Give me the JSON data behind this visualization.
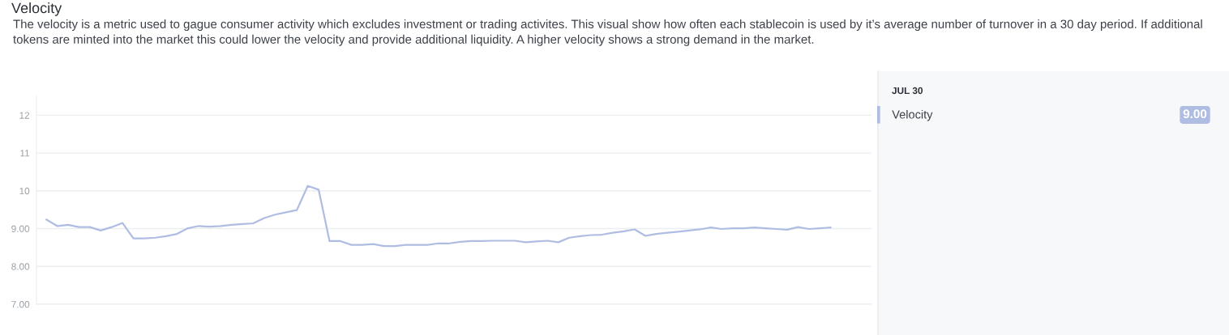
{
  "chart_data": {
    "type": "line",
    "title": "Velocity",
    "subtitle": "The velocity is a metric used to gague consumer activity which excludes investment or trading activites. This visual show how often each stablecoin is used by it’s average number of turnover in a 30 day period. If additional tokens are minted into the market this could lower the velocity and provide additional liquidity. A higher velocity shows a strong demand in the market.",
    "categories": [
      null,
      null,
      null,
      null,
      null,
      null,
      null,
      null,
      null,
      null,
      null,
      null,
      null,
      null,
      null,
      null,
      null,
      null,
      null,
      null,
      null,
      null,
      null,
      null,
      null,
      null,
      null,
      null,
      null,
      null,
      null,
      null,
      null,
      null,
      null,
      null,
      null,
      null,
      null,
      null,
      null,
      null,
      null,
      null,
      null,
      null,
      null,
      null,
      null,
      null,
      null,
      null,
      null,
      null,
      null,
      null,
      null,
      null,
      null,
      null,
      null,
      null,
      null,
      null,
      null,
      null,
      null,
      null,
      null,
      null,
      null,
      null,
      null
    ],
    "series": [
      {
        "name": "Velocity",
        "color": "#b0bde3",
        "values": [
          9.24,
          9.07,
          9.1,
          9.04,
          9.04,
          8.95,
          9.04,
          9.15,
          8.74,
          8.74,
          8.76,
          8.8,
          8.86,
          9.01,
          9.07,
          9.05,
          9.07,
          9.1,
          9.12,
          9.14,
          9.28,
          9.37,
          9.43,
          9.49,
          10.13,
          10.03,
          8.67,
          8.67,
          8.57,
          8.57,
          8.59,
          8.54,
          8.54,
          8.57,
          8.57,
          8.57,
          8.61,
          8.61,
          8.65,
          8.67,
          8.67,
          8.68,
          8.68,
          8.68,
          8.64,
          8.66,
          8.68,
          8.64,
          8.76,
          8.8,
          8.83,
          8.84,
          8.89,
          8.93,
          8.98,
          8.81,
          8.86,
          8.89,
          8.92,
          8.95,
          8.98,
          9.03,
          8.99,
          9.01,
          9.01,
          9.03,
          9.01,
          8.99,
          8.97,
          9.04,
          8.99,
          9.01,
          9.03
        ]
      }
    ],
    "ylim": [
      7,
      12.5
    ],
    "yticks": [
      {
        "value": 7,
        "label": "7.00"
      },
      {
        "value": 8,
        "label": "8.00"
      },
      {
        "value": 9,
        "label": "9.00"
      },
      10,
      11,
      12
    ],
    "grid": "y",
    "legend": "right",
    "tick_labels": "y",
    "annotations": [
      "JUL 30",
      "9.00"
    ]
  }
}
